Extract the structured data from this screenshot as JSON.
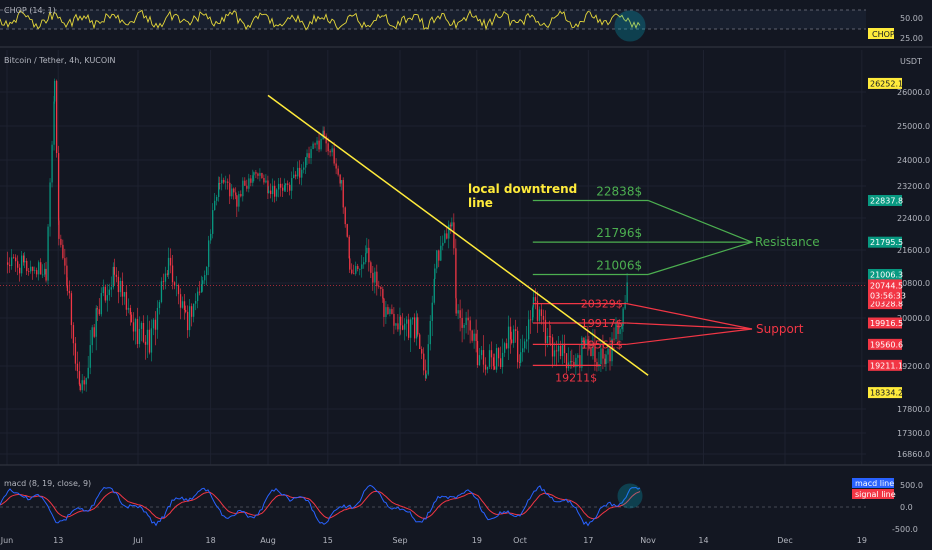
{
  "symbol_header": "Bitcoin / Tether, 4h, KUCOIN",
  "currency": "USDT",
  "chop": {
    "legend": "CHOP (14, 1)",
    "tag": "CHOP",
    "ticks": [
      "50.00",
      "25.00"
    ]
  },
  "macd": {
    "legend": "macd (8, 19, close, 9)",
    "legend_items": [
      "macd line",
      "signal line"
    ],
    "ticks": [
      "500.0",
      "0.0",
      "-500.0"
    ],
    "colors": {
      "macd": "#2962ff",
      "signal": "#f23645"
    }
  },
  "chart_data": {
    "type": "candlestick",
    "title": "Bitcoin / Tether, 4h, KUCOIN",
    "x_ticks": [
      "Jun",
      "13",
      "Jul",
      "18",
      "Aug",
      "15",
      "Sep",
      "19",
      "Oct",
      "17",
      "Nov",
      "14",
      "Dec",
      "19"
    ],
    "y_ticks": [
      "26000.0",
      "25000.0",
      "24000.0",
      "23200.0",
      "22400.0",
      "21600.0",
      "20800.0",
      "20000.0",
      "19200.0",
      "17800.0",
      "17300.0",
      "16860.0"
    ],
    "ylim": [
      16600,
      26600
    ],
    "price_series": [
      {
        "date": "Jun 01",
        "price": 21300
      },
      {
        "date": "Jun 05",
        "price": 21200
      },
      {
        "date": "Jun 10",
        "price": 21100
      },
      {
        "date": "Jun 12",
        "price": 26100
      },
      {
        "date": "Jun 13",
        "price": 22000
      },
      {
        "date": "Jun 15",
        "price": 20800
      },
      {
        "date": "Jun 18",
        "price": 18300
      },
      {
        "date": "Jun 22",
        "price": 20200
      },
      {
        "date": "Jun 26",
        "price": 21000
      },
      {
        "date": "Jun 30",
        "price": 19900
      },
      {
        "date": "Jul 04",
        "price": 19600
      },
      {
        "date": "Jul 08",
        "price": 21300
      },
      {
        "date": "Jul 12",
        "price": 19900
      },
      {
        "date": "Jul 16",
        "price": 20800
      },
      {
        "date": "Jul 20",
        "price": 23500
      },
      {
        "date": "Jul 24",
        "price": 22800
      },
      {
        "date": "Jul 28",
        "price": 23700
      },
      {
        "date": "Aug 01",
        "price": 23200
      },
      {
        "date": "Aug 05",
        "price": 23100
      },
      {
        "date": "Aug 10",
        "price": 24000
      },
      {
        "date": "Aug 14",
        "price": 24800
      },
      {
        "date": "Aug 18",
        "price": 23300
      },
      {
        "date": "Aug 20",
        "price": 21200
      },
      {
        "date": "Aug 24",
        "price": 21500
      },
      {
        "date": "Aug 28",
        "price": 20200
      },
      {
        "date": "Sep 01",
        "price": 20000
      },
      {
        "date": "Sep 05",
        "price": 19800
      },
      {
        "date": "Sep 07",
        "price": 19000
      },
      {
        "date": "Sep 09",
        "price": 21200
      },
      {
        "date": "Sep 13",
        "price": 22500
      },
      {
        "date": "Sep 14",
        "price": 20200
      },
      {
        "date": "Sep 19",
        "price": 19400
      },
      {
        "date": "Sep 23",
        "price": 19200
      },
      {
        "date": "Sep 27",
        "price": 19800
      },
      {
        "date": "Oct 01",
        "price": 19300
      },
      {
        "date": "Oct 04",
        "price": 20300
      },
      {
        "date": "Oct 08",
        "price": 19500
      },
      {
        "date": "Oct 13",
        "price": 19200
      },
      {
        "date": "Oct 17",
        "price": 19600
      },
      {
        "date": "Oct 21",
        "price": 19200
      },
      {
        "date": "Oct 25",
        "price": 20100
      },
      {
        "date": "Oct 26",
        "price": 20744.5
      }
    ],
    "current_price": {
      "value": 20744.5,
      "countdown": "03:56:33"
    },
    "price_tags": [
      {
        "value": 26252.1,
        "text": "26252.1",
        "color": "#ffeb3b",
        "text_color": "#131722"
      },
      {
        "value": 22837.8,
        "text": "22837.8",
        "color": "#089981",
        "text_color": "#ffffff"
      },
      {
        "value": 21795.5,
        "text": "21795.5",
        "color": "#089981",
        "text_color": "#ffffff"
      },
      {
        "value": 21006.3,
        "text": "21006.3",
        "color": "#089981",
        "text_color": "#ffffff"
      },
      {
        "value": 20328.8,
        "text": "20328.8",
        "color": "#f23645",
        "text_color": "#ffffff"
      },
      {
        "value": 19916.5,
        "text": "19916.5",
        "color": "#f23645",
        "text_color": "#ffffff"
      },
      {
        "value": 19560.6,
        "text": "19560.6",
        "color": "#f23645",
        "text_color": "#ffffff"
      },
      {
        "value": 19211.1,
        "text": "19211.1",
        "color": "#f23645",
        "text_color": "#ffffff"
      },
      {
        "value": 18334.2,
        "text": "18334.2",
        "color": "#ffeb3b",
        "text_color": "#131722"
      }
    ],
    "resistance_levels": [
      {
        "value": 22838,
        "label": "22838$"
      },
      {
        "value": 21796,
        "label": "21796$"
      },
      {
        "value": 21006,
        "label": "21006$"
      }
    ],
    "support_levels": [
      {
        "value": 20329,
        "label": "20329$"
      },
      {
        "value": 19917,
        "label": "19917$"
      },
      {
        "value": 19561,
        "label": "19561$"
      },
      {
        "value": 19211,
        "label": "19211$"
      }
    ],
    "annotations": {
      "downtrend": [
        "local downtrend",
        "line"
      ],
      "resistance": "Resistance",
      "support": "Support"
    },
    "colors": {
      "up": "#089981",
      "down": "#f23645",
      "resistance": "#4caf50",
      "support": "#f23645",
      "trendline": "#ffeb3b"
    }
  }
}
